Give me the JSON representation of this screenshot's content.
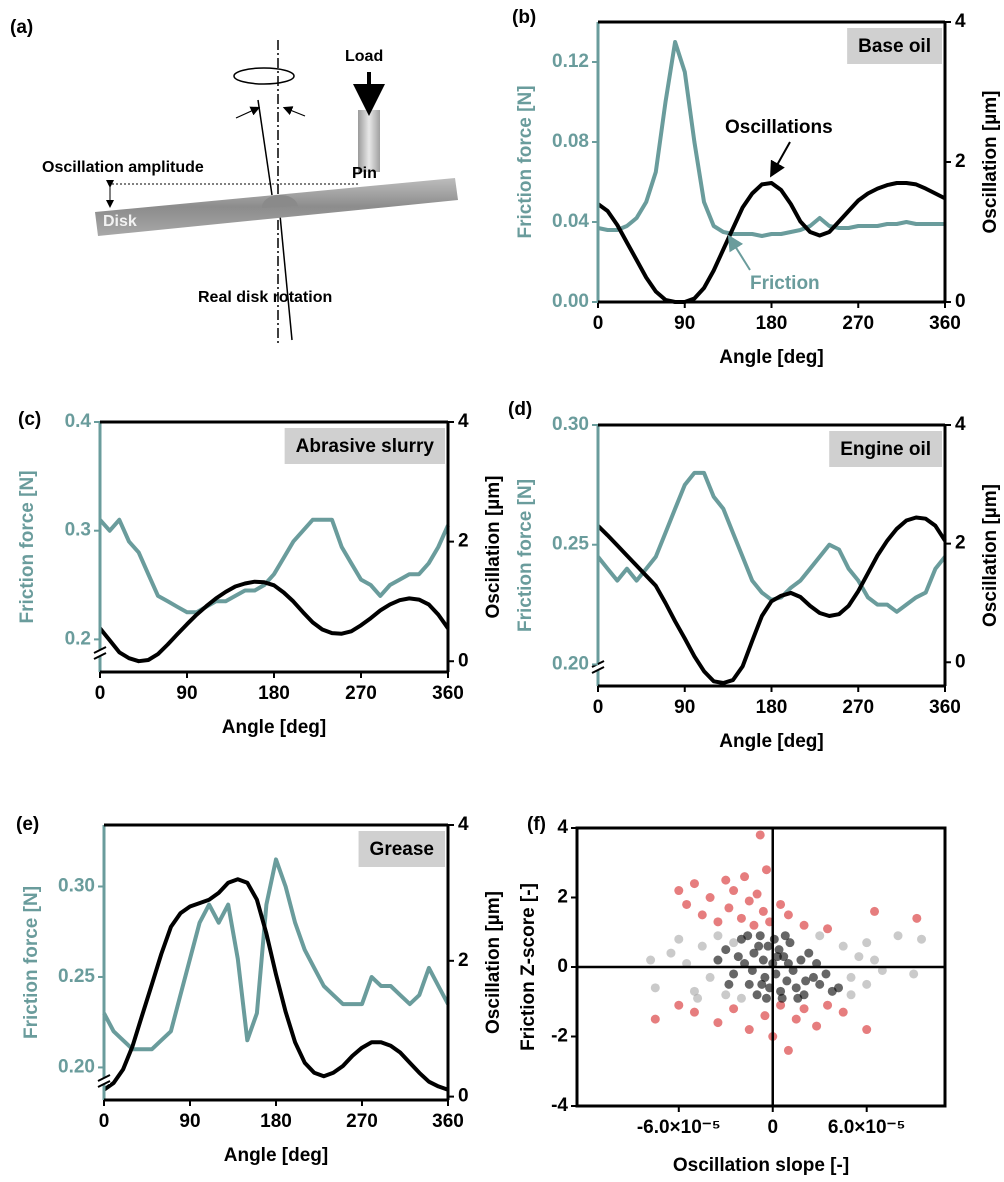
{
  "diagram": {
    "panel": "(a)",
    "load": "Load",
    "amplitude": "Oscillation amplitude",
    "pin": "Pin",
    "disk": "Disk",
    "rotation": "Real disk rotation"
  },
  "chart_data": [
    {
      "type": "line",
      "panel": "(b)",
      "title": "Base oil",
      "x_label": "Angle [deg]",
      "y_label": "Friction force [N]",
      "y2_label": "Oscillation [µm]",
      "annotations": [
        "Oscillations",
        "Friction"
      ],
      "axis_break": false,
      "x": [
        0,
        10,
        20,
        30,
        40,
        50,
        60,
        70,
        80,
        90,
        100,
        110,
        120,
        130,
        140,
        150,
        160,
        170,
        180,
        190,
        200,
        210,
        220,
        230,
        240,
        250,
        260,
        270,
        280,
        290,
        300,
        310,
        320,
        330,
        340,
        350,
        360
      ],
      "xlim": [
        0,
        360
      ],
      "xticks": [
        0,
        90,
        180,
        270,
        360
      ],
      "ylim": [
        0,
        0.14
      ],
      "yticks": [
        {
          "value": 0,
          "label": "0.00"
        },
        0.04,
        0.08,
        0.12
      ],
      "y2lim": [
        0,
        4
      ],
      "y2ticks": [
        0,
        2,
        4
      ],
      "series": [
        {
          "color": "#6a9c9c",
          "values": [
            0.037,
            0.036,
            0.036,
            0.038,
            0.042,
            0.05,
            0.065,
            0.1,
            0.13,
            0.115,
            0.08,
            0.05,
            0.038,
            0.035,
            0.034,
            0.034,
            0.034,
            0.033,
            0.034,
            0.034,
            0.035,
            0.036,
            0.038,
            0.042,
            0.038,
            0.037,
            0.037,
            0.038,
            0.038,
            0.038,
            0.039,
            0.039,
            0.04,
            0.039,
            0.039,
            0.039,
            0.039
          ]
        },
        {
          "color": "#000000",
          "axis": "y2",
          "values": [
            1.4,
            1.3,
            1.1,
            0.85,
            0.6,
            0.35,
            0.15,
            0.03,
            0,
            0,
            0.05,
            0.2,
            0.45,
            0.75,
            1.05,
            1.35,
            1.55,
            1.68,
            1.7,
            1.6,
            1.4,
            1.15,
            1.0,
            0.95,
            1.0,
            1.15,
            1.3,
            1.45,
            1.55,
            1.62,
            1.67,
            1.7,
            1.7,
            1.68,
            1.62,
            1.55,
            1.48
          ]
        }
      ]
    },
    {
      "type": "line",
      "panel": "(c)",
      "title": "Abrasive slurry",
      "x_label": "Angle [deg]",
      "y_label": "Friction force [N]",
      "y2_label": "Oscillation [µm]",
      "axis_break": true,
      "x": [
        0,
        10,
        20,
        30,
        40,
        50,
        60,
        70,
        80,
        90,
        100,
        110,
        120,
        130,
        140,
        150,
        160,
        170,
        180,
        190,
        200,
        210,
        220,
        230,
        240,
        250,
        260,
        270,
        280,
        290,
        300,
        310,
        320,
        330,
        340,
        350,
        360
      ],
      "xlim": [
        0,
        360
      ],
      "xticks": [
        0,
        90,
        180,
        270,
        360
      ],
      "ylim": [
        0.17,
        0.4
      ],
      "yticks": [
        0.2,
        0.3,
        0.4
      ],
      "y2lim": [
        -0.18,
        4
      ],
      "y2ticks": [
        0,
        2,
        4
      ],
      "series": [
        {
          "color": "#6a9c9c",
          "values": [
            0.31,
            0.3,
            0.31,
            0.29,
            0.28,
            0.26,
            0.24,
            0.235,
            0.23,
            0.225,
            0.225,
            0.23,
            0.235,
            0.235,
            0.24,
            0.245,
            0.245,
            0.25,
            0.26,
            0.275,
            0.29,
            0.3,
            0.31,
            0.31,
            0.31,
            0.285,
            0.27,
            0.255,
            0.25,
            0.24,
            0.25,
            0.255,
            0.26,
            0.26,
            0.27,
            0.285,
            0.305
          ]
        },
        {
          "color": "#000000",
          "axis": "y2",
          "values": [
            0.55,
            0.35,
            0.15,
            0.05,
            0,
            0.02,
            0.12,
            0.28,
            0.45,
            0.62,
            0.78,
            0.92,
            1.05,
            1.16,
            1.25,
            1.3,
            1.33,
            1.32,
            1.27,
            1.15,
            1.0,
            0.82,
            0.65,
            0.53,
            0.47,
            0.46,
            0.5,
            0.6,
            0.72,
            0.85,
            0.95,
            1.02,
            1.05,
            1.03,
            0.95,
            0.78,
            0.55
          ]
        }
      ]
    },
    {
      "type": "line",
      "panel": "(d)",
      "title": "Engine oil",
      "x_label": "Angle [deg]",
      "y_label": "Friction force [N]",
      "y2_label": "Oscillation [µm]",
      "axis_break": true,
      "x": [
        0,
        10,
        20,
        30,
        40,
        50,
        60,
        70,
        80,
        90,
        100,
        110,
        120,
        130,
        140,
        150,
        160,
        170,
        180,
        190,
        200,
        210,
        220,
        230,
        240,
        250,
        260,
        270,
        280,
        290,
        300,
        310,
        320,
        330,
        340,
        350,
        360
      ],
      "xlim": [
        0,
        360
      ],
      "xticks": [
        0,
        90,
        180,
        270,
        360
      ],
      "ylim": [
        0.191,
        0.3
      ],
      "yticks": [
        {
          "value": 0.2,
          "label": "0.20"
        },
        0.25,
        {
          "value": 0.3,
          "label": "0.30"
        }
      ],
      "y2lim": [
        -0.4,
        4
      ],
      "y2ticks": [
        0,
        2,
        4
      ],
      "series": [
        {
          "color": "#6a9c9c",
          "values": [
            0.245,
            0.24,
            0.235,
            0.24,
            0.235,
            0.24,
            0.245,
            0.255,
            0.265,
            0.275,
            0.28,
            0.28,
            0.27,
            0.265,
            0.255,
            0.245,
            0.235,
            0.23,
            0.227,
            0.228,
            0.232,
            0.235,
            0.24,
            0.245,
            0.25,
            0.248,
            0.24,
            0.235,
            0.228,
            0.225,
            0.225,
            0.222,
            0.225,
            0.228,
            0.23,
            0.24,
            0.245
          ]
        },
        {
          "color": "#000000",
          "axis": "y2",
          "values": [
            2.3,
            2.14,
            1.97,
            1.8,
            1.63,
            1.46,
            1.29,
            1.0,
            0.69,
            0.4,
            0.1,
            -0.15,
            -0.32,
            -0.35,
            -0.3,
            -0.07,
            0.36,
            0.78,
            1.03,
            1.12,
            1.17,
            1.1,
            0.95,
            0.83,
            0.78,
            0.81,
            0.95,
            1.2,
            1.5,
            1.8,
            2.05,
            2.25,
            2.39,
            2.44,
            2.42,
            2.3,
            2.05
          ]
        }
      ]
    },
    {
      "type": "line",
      "panel": "(e)",
      "title": "Grease",
      "x_label": "Angle [deg]",
      "y_label": "Friction force [N]",
      "y2_label": "Oscillation [µm]",
      "axis_break": true,
      "x": [
        0,
        10,
        20,
        30,
        40,
        50,
        60,
        70,
        80,
        90,
        100,
        110,
        120,
        130,
        140,
        150,
        160,
        170,
        180,
        190,
        200,
        210,
        220,
        230,
        240,
        250,
        260,
        270,
        280,
        290,
        300,
        310,
        320,
        330,
        340,
        350,
        360
      ],
      "xlim": [
        0,
        360
      ],
      "xticks": [
        0,
        90,
        180,
        270,
        360
      ],
      "ylim": [
        0.182,
        0.334
      ],
      "yticks": [
        {
          "value": 0.2,
          "label": "0.20"
        },
        0.25,
        {
          "value": 0.3,
          "label": "0.30"
        }
      ],
      "y2lim": [
        -0.05,
        4
      ],
      "y2ticks": [
        0,
        2,
        4
      ],
      "series": [
        {
          "color": "#6a9c9c",
          "values": [
            0.23,
            0.22,
            0.215,
            0.21,
            0.21,
            0.21,
            0.215,
            0.22,
            0.24,
            0.26,
            0.28,
            0.29,
            0.28,
            0.29,
            0.26,
            0.215,
            0.23,
            0.29,
            0.315,
            0.3,
            0.28,
            0.265,
            0.255,
            0.245,
            0.24,
            0.235,
            0.235,
            0.235,
            0.25,
            0.245,
            0.245,
            0.24,
            0.235,
            0.24,
            0.255,
            0.245,
            0.235
          ]
        },
        {
          "color": "#000000",
          "axis": "y2",
          "values": [
            0.1,
            0.2,
            0.4,
            0.75,
            1.2,
            1.65,
            2.1,
            2.5,
            2.7,
            2.8,
            2.85,
            2.9,
            3.0,
            3.15,
            3.2,
            3.15,
            2.9,
            2.4,
            1.8,
            1.25,
            0.8,
            0.5,
            0.35,
            0.3,
            0.35,
            0.45,
            0.6,
            0.72,
            0.8,
            0.8,
            0.75,
            0.65,
            0.5,
            0.35,
            0.22,
            0.15,
            0.1
          ]
        }
      ]
    },
    {
      "type": "scatter",
      "panel": "(f)",
      "x_label": "Oscillation slope [-]",
      "y_label": "Friction Z-score [-]",
      "xlim": [
        -0.000125,
        0.00011
      ],
      "xticks": [
        {
          "value": -6e-05,
          "label": "-6.0×10⁻⁵"
        },
        0,
        {
          "value": 6e-05,
          "label": "6.0×10⁻⁵"
        }
      ],
      "ylim": [
        -4,
        4
      ],
      "yticks": [
        -4,
        -2,
        0,
        2,
        4
      ],
      "series": [
        {
          "color": "#a6a6a6",
          "x": [
            -7.8e-05,
            -7.5e-05,
            -6.5e-05,
            -5.5e-05,
            -5e-05,
            -4.5e-05,
            -4e-05,
            -3.5e-05,
            -3e-05,
            -2.5e-05,
            5e-05,
            5.5e-05,
            6e-05,
            6.5e-05,
            7e-05,
            8e-05,
            9.5e-05,
            9e-05,
            -6e-05,
            4.5e-05,
            -2e-05,
            3e-05,
            -4.8e-05,
            5e-05,
            6e-05
          ],
          "values": [
            0.2,
            -0.6,
            0.4,
            0.1,
            -0.7,
            0.6,
            -0.3,
            0.9,
            -0.8,
            0.7,
            -0.3,
            0.3,
            -0.5,
            0.2,
            -0.1,
            0.9,
            0.8,
            -0.2,
            0.8,
            0.6,
            -0.9,
            0.9,
            -0.9,
            -0.8,
            0.7
          ]
        },
        {
          "color": "#d62728",
          "x": [
            -6e-05,
            -5.5e-05,
            -5e-05,
            -4.5e-05,
            -4e-05,
            -3.5e-05,
            -3e-05,
            -2.8e-05,
            -2.5e-05,
            -2e-05,
            -1.8e-05,
            -1.5e-05,
            -1.2e-05,
            -1e-05,
            -8e-06,
            -6e-06,
            -4e-06,
            -2e-06,
            5e-06,
            1e-05,
            2e-05,
            3.5e-05,
            6.5e-05,
            9.2e-05,
            -7.5e-05,
            -6e-05,
            -5e-05,
            -3.5e-05,
            -2.5e-05,
            -1.5e-05,
            -5e-06,
            0,
            5e-06,
            1e-05,
            1.5e-05,
            2e-05,
            2.8e-05,
            3.5e-05,
            4.5e-05,
            6e-05
          ],
          "values": [
            2.2,
            1.8,
            2.4,
            1.5,
            2.0,
            1.3,
            2.5,
            1.7,
            2.2,
            1.4,
            2.6,
            1.9,
            1.2,
            2.1,
            3.8,
            1.6,
            2.8,
            1.3,
            1.8,
            1.5,
            1.2,
            1.1,
            1.6,
            1.4,
            -1.5,
            -1.1,
            -1.3,
            -1.6,
            -1.2,
            -1.8,
            -1.4,
            -2.0,
            -1.1,
            -2.4,
            -1.5,
            -1.2,
            -1.7,
            -1.1,
            -1.3,
            -1.8
          ]
        },
        {
          "color": "#000000",
          "x": [
            -3e-05,
            -2.5e-05,
            -2e-05,
            -1.8e-05,
            -1.5e-05,
            -1.2e-05,
            -1e-05,
            -8e-06,
            -6e-06,
            -5e-06,
            -3e-06,
            -2e-06,
            0,
            2e-06,
            4e-06,
            5e-06,
            7e-06,
            9e-06,
            1.1e-05,
            1.3e-05,
            1.5e-05,
            1.8e-05,
            2e-05,
            2.3e-05,
            2.6e-05,
            3e-05,
            3.4e-05,
            3.8e-05,
            -2.8e-05,
            -2.2e-05,
            -1.6e-05,
            -9e-06,
            -4e-06,
            1e-06,
            6e-06,
            1e-05,
            1.6e-05,
            2.1e-05,
            -1.3e-05,
            -7e-06,
            3e-06,
            8e-06,
            2.8e-05,
            -3.5e-05,
            4.2e-05
          ],
          "values": [
            0.5,
            -0.2,
            0.8,
            0.1,
            -0.5,
            0.4,
            -0.8,
            0.9,
            0.2,
            -0.3,
            0.6,
            -0.6,
            0.1,
            -0.2,
            0.5,
            -0.7,
            0.3,
            -0.4,
            0.7,
            -0.1,
            -0.6,
            0.2,
            -0.8,
            0.4,
            -0.3,
            -0.5,
            -0.2,
            -0.7,
            -0.5,
            0.3,
            0.9,
            0.6,
            -0.9,
            0.8,
            -0.9,
            0.1,
            -0.9,
            -0.4,
            -0.1,
            -0.5,
            0.3,
            0.9,
            0.1,
            0.2,
            -0.6
          ]
        }
      ]
    }
  ]
}
